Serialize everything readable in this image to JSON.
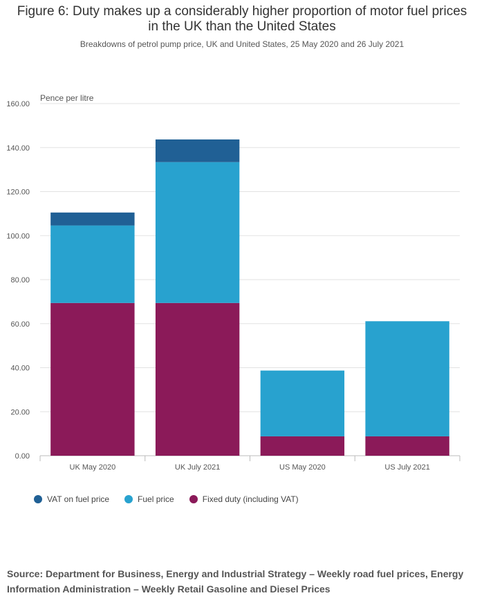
{
  "chart_data": {
    "type": "bar",
    "stacked": true,
    "title": "Figure 6: Duty makes up a considerably higher proportion of motor fuel prices in the UK than the United States",
    "subtitle": "Breakdowns of petrol pump price, UK and United States, 25 May 2020 and 26 July 2021",
    "ylabel": "Pence per litre",
    "ylim": [
      0,
      160
    ],
    "yticks": [
      "0.00",
      "20.00",
      "40.00",
      "60.00",
      "80.00",
      "100.00",
      "120.00",
      "140.00",
      "160.00"
    ],
    "categories": [
      "UK May 2020",
      "UK July 2021",
      "US May 2020",
      "US July 2021"
    ],
    "series": [
      {
        "name": "Fixed duty (including VAT)",
        "color": "#8b1a59",
        "values": [
          69.4,
          69.4,
          8.8,
          8.8
        ]
      },
      {
        "name": "Fuel price",
        "color": "#28a2cf",
        "values": [
          35.2,
          64.0,
          29.9,
          52.3
        ]
      },
      {
        "name": "VAT on fuel price",
        "color": "#206095",
        "values": [
          5.9,
          10.3,
          0,
          0
        ]
      }
    ],
    "legend_order": [
      2,
      1,
      0
    ],
    "legend": "bottom-left",
    "grid": true
  },
  "source": "Source: Department for Business, Energy and Industrial Strategy – Weekly road fuel prices, Energy Information Administration – Weekly Retail Gasoline and Diesel Prices"
}
